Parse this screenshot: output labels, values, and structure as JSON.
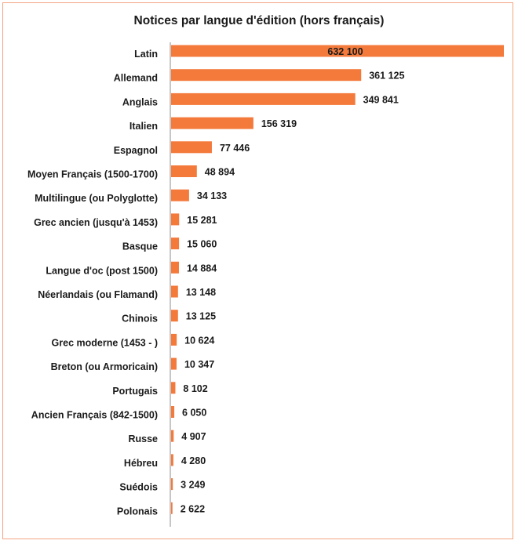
{
  "chart_data": {
    "type": "bar",
    "orientation": "horizontal",
    "title": "Notices par langue d'édition (hors français)",
    "xlabel": "",
    "ylabel": "",
    "xlim": [
      0,
      632100
    ],
    "bar_color": "#f47a3c",
    "border_color": "#f4a582",
    "categories": [
      "Latin",
      "Allemand",
      "Anglais",
      "Italien",
      "Espagnol",
      "Moyen Français (1500-1700)",
      "Multilingue (ou Polyglotte)",
      "Grec ancien (jusqu'à 1453)",
      "Basque",
      "Langue d'oc (post 1500)",
      "Néerlandais (ou Flamand)",
      "Chinois",
      "Grec moderne (1453 - )",
      "Breton (ou Armoricain)",
      "Portugais",
      "Ancien Français (842-1500)",
      "Russe",
      "Hébreu",
      "Suédois",
      "Polonais"
    ],
    "values": [
      632100,
      361125,
      349841,
      156319,
      77446,
      48894,
      34133,
      15281,
      15060,
      14884,
      13148,
      13125,
      10624,
      10347,
      8102,
      6050,
      4907,
      4280,
      3249,
      2622
    ],
    "labels": [
      "632 100",
      "361 125",
      "349 841",
      "156 319",
      "77 446",
      "48 894",
      "34 133",
      "15 281",
      "15 060",
      "14 884",
      "13 148",
      "13 125",
      "10 624",
      "10 347",
      "8 102",
      "6 050",
      "4 907",
      "4 280",
      "3 249",
      "2 622"
    ]
  }
}
